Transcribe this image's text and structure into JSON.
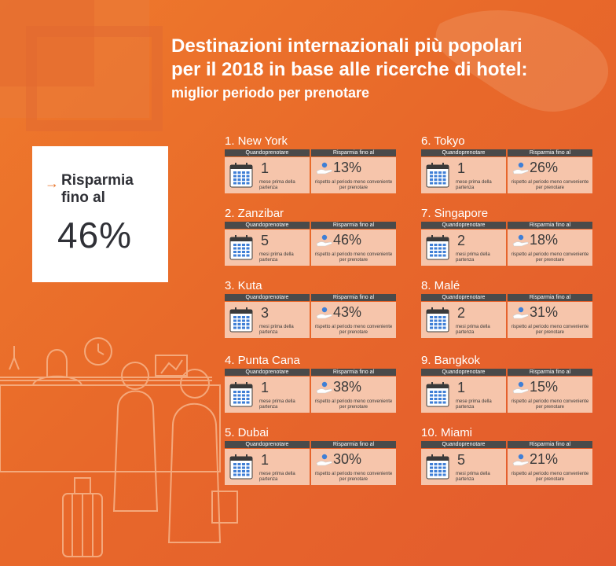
{
  "title": {
    "line1": "Destinazioni internazionali più popolari",
    "line2": "per il 2018 in base alle ricerche di hotel:",
    "subtitle": "miglior periodo per prenotare"
  },
  "savings_box": {
    "arrow": "→",
    "label": "Risparmia fino al",
    "value": "46%"
  },
  "labels": {
    "when": "Quandoprenotare",
    "save": "Risparmia fino al",
    "before_departure_singular": "mese prima della partenza",
    "before_departure_plural": "mesi prima della partenza",
    "vs_period": "rispetto al periodo meno conveniente per prenotare"
  },
  "destinations": [
    {
      "name": "1. New York",
      "months": "1",
      "months_note": "mese  prima della partenza",
      "saving": "13%"
    },
    {
      "name": "2. Zanzibar",
      "months": "5",
      "months_note": "mesi prima della partenza",
      "saving": "46%"
    },
    {
      "name": "3. Kuta",
      "months": "3",
      "months_note": "mesi prima della partenza",
      "saving": "43%"
    },
    {
      "name": "4. Punta Cana",
      "months": "1",
      "months_note": "mese  prima della partenza",
      "saving": "38%"
    },
    {
      "name": "5. Dubai",
      "months": "1",
      "months_note": "mese  prima della partenza",
      "saving": "30%"
    },
    {
      "name": "6. Tokyo",
      "months": "1",
      "months_note": "mese  prima della partenza",
      "saving": "26%"
    },
    {
      "name": "7. Singapore",
      "months": "2",
      "months_note": "mesi prima della partenza",
      "saving": "18%"
    },
    {
      "name": "8. Malé",
      "months": "2",
      "months_note": "mesi prima della partenza",
      "saving": "31%"
    },
    {
      "name": "9. Bangkok",
      "months": "1",
      "months_note": "mese  prima della partenza",
      "saving": "15%"
    },
    {
      "name": "10. Miami",
      "months": "5",
      "months_note": "mesi prima della partenza",
      "saving": "21%"
    }
  ],
  "colors": {
    "background": "#e8692a",
    "card_header": "#4a4a4a",
    "card_cell": "#f6c5ab",
    "accent_arrow": "#e8762c",
    "calendar_blue": "#3f7fd6"
  },
  "icons": [
    "calendar-icon",
    "coin-hand-icon",
    "arrow-right-icon"
  ]
}
